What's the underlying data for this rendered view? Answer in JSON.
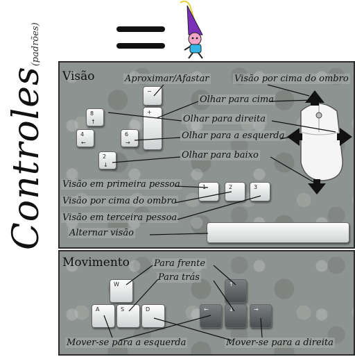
{
  "header": {
    "wizard_icon": "wizard-mascot-icon"
  },
  "side_title": {
    "main": "Controles",
    "sub": "(padrões)"
  },
  "view": {
    "title": "Visão",
    "labels": {
      "zoom": "Aproximar/Afastar",
      "over_shoulder_top": "Visão por cima do ombro",
      "look_up": "Olhar para cima",
      "look_right": "Olhar para direita",
      "look_left": "Olhar para a esquerda",
      "look_down": "Olhar para baixo",
      "first_person": "Visão em primeira pessoa",
      "over_shoulder": "Visão por cima do ombro",
      "third_person": "Visão em terceira pessoa",
      "toggle_view": "Alternar visão"
    },
    "numpad": {
      "k8": "8",
      "k8_arrow": "↑",
      "k4": "4",
      "k4_arrow": "←",
      "k6": "6",
      "k6_arrow": "→",
      "k2": "2",
      "k2_arrow": "↓",
      "minus": "−",
      "plus": "+"
    },
    "num_keys": [
      "1",
      "2",
      "3"
    ]
  },
  "movement": {
    "title": "Movimento",
    "labels": {
      "forward": "Para frente",
      "back": "Para trás",
      "move_left": "Mover-se para a esquerda",
      "move_right": "Mover-se para a direita"
    },
    "keys": {
      "w": "W",
      "a": "A",
      "s": "S",
      "d": "D",
      "up": "↑",
      "left": "←",
      "down": "↓",
      "right": "→"
    }
  },
  "colors": {
    "panel": "#8d9390",
    "border": "#2b2b2b",
    "wizard_hat": "#7b2fb8",
    "wizard_body": "#33b5e5"
  }
}
